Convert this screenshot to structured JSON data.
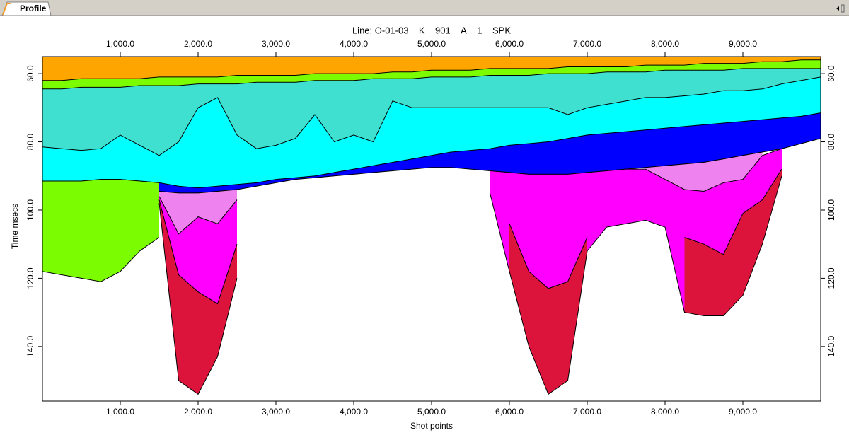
{
  "tab": {
    "label": "Profile"
  },
  "chart_data": {
    "type": "layered-area",
    "title": "Line: O-01-03__K__901__A__1__SPK",
    "x_label": "Shot points",
    "y_label": "Time msecs",
    "xlim": [
      0,
      10000
    ],
    "ylim": [
      55,
      156
    ],
    "y_inverted": true,
    "plot_background": "#ffa500",
    "line_color": "#000000",
    "xticks": [
      {
        "value": 1000,
        "label": "1,000.0"
      },
      {
        "value": 2000,
        "label": "2,000.0"
      },
      {
        "value": 3000,
        "label": "3,000.0"
      },
      {
        "value": 4000,
        "label": "4,000.0"
      },
      {
        "value": 5000,
        "label": "5,000.0"
      },
      {
        "value": 6000,
        "label": "6,000.0"
      },
      {
        "value": 7000,
        "label": "7,000.0"
      },
      {
        "value": 8000,
        "label": "8,000.0"
      },
      {
        "value": 9000,
        "label": "9,000.0"
      }
    ],
    "yticks": [
      {
        "value": 60,
        "label": "60.0"
      },
      {
        "value": 80,
        "label": "80.0"
      },
      {
        "value": 100,
        "label": "100.0"
      },
      {
        "value": 120,
        "label": "120.0"
      },
      {
        "value": 140,
        "label": "140.0"
      }
    ],
    "x": [
      0,
      250,
      500,
      750,
      1000,
      1250,
      1500,
      1750,
      2000,
      2250,
      2500,
      2750,
      3000,
      3250,
      3500,
      3750,
      4000,
      4250,
      4500,
      4750,
      5000,
      5250,
      5500,
      5750,
      6000,
      6250,
      6500,
      6750,
      7000,
      7250,
      7500,
      7750,
      8000,
      8250,
      8500,
      8750,
      9000,
      9250,
      9500,
      9750,
      10000
    ],
    "series": [
      {
        "color": "#7cfc00",
        "values": [
          62,
          62,
          61.5,
          61.5,
          61.5,
          61.5,
          61,
          61,
          61,
          61,
          60.5,
          60.5,
          60.5,
          60.5,
          60,
          60,
          60,
          60,
          59.5,
          59.5,
          59,
          59,
          59,
          58.5,
          58.5,
          58.5,
          58.5,
          58,
          58,
          58,
          58,
          57.5,
          57.5,
          57.5,
          57,
          57,
          57,
          56.5,
          56.5,
          56,
          56
        ]
      },
      {
        "color": "#40e0d0",
        "values": [
          64.5,
          64.5,
          64,
          64,
          64,
          63.5,
          63.5,
          63.5,
          63,
          63,
          63,
          62.5,
          62.5,
          62.5,
          62,
          62,
          62,
          61.5,
          61.5,
          61.5,
          61,
          61,
          61,
          60.5,
          60.5,
          60.5,
          60,
          60,
          60,
          59.5,
          59.5,
          59.5,
          59,
          59,
          59,
          59,
          58.5,
          58.5,
          58.5,
          58.5,
          58.5
        ]
      },
      {
        "color": "#00ffff",
        "values": [
          81.5,
          82,
          82.5,
          82,
          78,
          81,
          84,
          80,
          70,
          67,
          78,
          82,
          81,
          79,
          72,
          80,
          78,
          80,
          68,
          70,
          70,
          70,
          70,
          70,
          70,
          70,
          70,
          72,
          70,
          69,
          68,
          67,
          67,
          66.5,
          66,
          65,
          65,
          64.5,
          63,
          62,
          61
        ]
      },
      {
        "color": "#0000ff",
        "values": [
          91.5,
          91.5,
          91.5,
          91,
          91,
          91.5,
          92,
          93,
          93.5,
          93,
          92.5,
          92,
          91,
          90.5,
          90,
          89,
          88,
          87,
          86,
          85,
          84,
          83,
          82.5,
          82,
          81,
          80.5,
          80,
          79,
          78,
          77.5,
          77,
          76.5,
          76,
          75.5,
          75,
          74.5,
          74,
          73.5,
          73,
          72.5,
          71.5
        ]
      },
      {
        "color": "#ffffff",
        "values": [
          null,
          null,
          null,
          null,
          null,
          null,
          94.5,
          95,
          95,
          94.5,
          94,
          93,
          92,
          91,
          90.5,
          90,
          89.5,
          89,
          88.5,
          88,
          87.5,
          87.5,
          88,
          88.5,
          89,
          89.5,
          89.5,
          89.5,
          89,
          88.5,
          88,
          87.5,
          87,
          86.5,
          86,
          85,
          84,
          83,
          82,
          80.5,
          79
        ]
      },
      {
        "color": "#7cfc00",
        "values": [
          91.5,
          91.5,
          91.5,
          91,
          91,
          91.5,
          92,
          null,
          null,
          null,
          null,
          null,
          null,
          null,
          null,
          null,
          null,
          null,
          null,
          null,
          null,
          null,
          null,
          null,
          null,
          null,
          null,
          null,
          null,
          null,
          null,
          null,
          null,
          null,
          null,
          null,
          null,
          null,
          null,
          null,
          null
        ]
      },
      {
        "color": "#ffffff",
        "values": [
          118,
          119,
          120,
          121,
          118,
          112,
          108,
          null,
          null,
          null,
          null,
          null,
          null,
          null,
          null,
          null,
          null,
          null,
          null,
          null,
          null,
          null,
          null,
          null,
          null,
          null,
          null,
          null,
          null,
          null,
          null,
          null,
          null,
          null,
          null,
          null,
          null,
          null,
          null,
          null,
          null
        ]
      },
      {
        "color": "#ee82ee",
        "values": [
          null,
          null,
          null,
          null,
          null,
          null,
          94.5,
          95,
          95,
          94.5,
          94,
          null,
          null,
          null,
          null,
          null,
          null,
          null,
          null,
          null,
          null,
          null,
          null,
          null,
          null,
          null,
          null,
          null,
          null,
          null,
          null,
          87.5,
          87,
          86.5,
          86,
          85,
          84,
          83,
          null,
          null,
          null
        ]
      },
      {
        "color": "#ff00ff",
        "values": [
          null,
          null,
          null,
          null,
          null,
          null,
          96,
          107,
          102,
          104,
          97,
          null,
          null,
          null,
          null,
          null,
          null,
          null,
          null,
          null,
          null,
          null,
          null,
          88.5,
          89,
          89.5,
          89.5,
          89.5,
          89,
          88.5,
          88,
          88,
          91,
          94,
          94.5,
          92,
          91,
          84,
          82,
          null,
          null
        ]
      },
      {
        "color": "#dc143c",
        "values": [
          null,
          null,
          null,
          null,
          null,
          null,
          97,
          119,
          124,
          127.5,
          110,
          null,
          null,
          null,
          null,
          null,
          null,
          null,
          null,
          null,
          null,
          null,
          null,
          null,
          104,
          118,
          123,
          121,
          108,
          null,
          null,
          null,
          null,
          108,
          110,
          113,
          101,
          97,
          88,
          null,
          null
        ]
      },
      {
        "color": "#ffffff",
        "values": [
          null,
          null,
          null,
          null,
          null,
          null,
          98,
          150,
          154,
          143,
          120,
          null,
          null,
          null,
          null,
          null,
          null,
          null,
          null,
          null,
          null,
          null,
          null,
          95,
          118,
          140,
          154,
          150,
          112,
          105,
          104,
          103,
          105,
          130,
          131,
          131,
          125,
          110,
          90,
          null,
          null
        ]
      }
    ]
  }
}
